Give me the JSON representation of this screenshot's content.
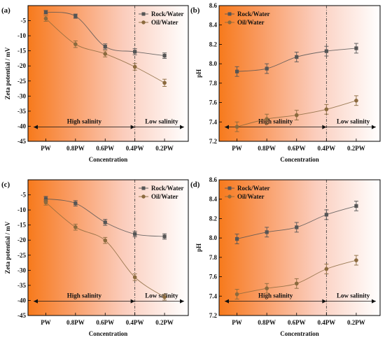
{
  "chart_data": [
    {
      "type": "line",
      "panel_label": "(a)",
      "xlabel": "Concentration",
      "ylabel": "Zeta potential / mV",
      "categories": [
        "PW",
        "0.8PW",
        "0.6PW",
        "0.4PW",
        "0.2PW"
      ],
      "ylim": [
        -45,
        0
      ],
      "yticks": [
        -45,
        -40,
        -35,
        -30,
        -25,
        -20,
        -15,
        -10,
        -5
      ],
      "ytick_labels": [
        "-45",
        "-40",
        "-35",
        "-30",
        "-25",
        "-20",
        "-15",
        "-10",
        "-5"
      ],
      "divider_at": "0.4PW",
      "annotations": {
        "left": "High salinity",
        "right": "Low salinity"
      },
      "legend_position": "top-right",
      "series": [
        {
          "name": "Rock/Water",
          "marker": "square",
          "color": "#555555",
          "values": [
            -2.2,
            -3.5,
            -13.6,
            -15.3,
            -16.6
          ],
          "errors": [
            0.6,
            0.7,
            0.9,
            1.0,
            0.9
          ]
        },
        {
          "name": "Oil/Water",
          "marker": "circle",
          "color": "#8b6a3e",
          "values": [
            -4.3,
            -12.8,
            -16.0,
            -20.3,
            -25.6
          ],
          "errors": [
            0.9,
            1.1,
            1.0,
            1.1,
            1.2
          ]
        }
      ]
    },
    {
      "type": "line",
      "panel_label": "(b)",
      "xlabel": "Concentration",
      "ylabel": "pH",
      "categories": [
        "PW",
        "0.8PW",
        "0.6PW",
        "0.4PW",
        "0.2PW"
      ],
      "ylim": [
        7.2,
        8.6
      ],
      "yticks": [
        7.2,
        7.4,
        7.6,
        7.8,
        8.0,
        8.2,
        8.4,
        8.6
      ],
      "ytick_labels": [
        "7.2",
        "7.4",
        "7.6",
        "7.8",
        "8.0",
        "8.2",
        "8.4",
        "8.6"
      ],
      "divider_at": "0.4PW",
      "annotations": {
        "left": "High salinity",
        "right": "Low salinity"
      },
      "legend_position": "top-left",
      "series": [
        {
          "name": "Rock/Water",
          "marker": "square",
          "color": "#555555",
          "values": [
            7.92,
            7.95,
            8.07,
            8.13,
            8.16
          ],
          "errors": [
            0.05,
            0.05,
            0.05,
            0.05,
            0.05
          ]
        },
        {
          "name": "Oil/Water",
          "marker": "circle",
          "color": "#8b6a3e",
          "values": [
            7.35,
            7.43,
            7.47,
            7.53,
            7.62
          ],
          "errors": [
            0.05,
            0.05,
            0.05,
            0.05,
            0.05
          ]
        }
      ]
    },
    {
      "type": "line",
      "panel_label": "(c)",
      "xlabel": "Concentration",
      "ylabel": "Zeta potential / mV",
      "categories": [
        "PW",
        "0.8PW",
        "0.6PW",
        "0.4PW",
        "0.2PW"
      ],
      "ylim": [
        -45,
        0
      ],
      "yticks": [
        -45,
        -40,
        -35,
        -30,
        -25,
        -20,
        -15,
        -10,
        -5
      ],
      "ytick_labels": [
        "-45",
        "-40",
        "-35",
        "-30",
        "-25",
        "-20",
        "-15",
        "-10",
        "-5"
      ],
      "divider_at": "0.4PW",
      "annotations": {
        "left": "High salinity",
        "right": "Low salinity"
      },
      "legend_position": "top-right",
      "series": [
        {
          "name": "Rock/Water",
          "marker": "square",
          "color": "#555555",
          "values": [
            -6.3,
            -7.8,
            -14.1,
            -18.0,
            -18.8
          ],
          "errors": [
            0.8,
            0.9,
            1.0,
            0.9,
            0.9
          ]
        },
        {
          "name": "Oil/Water",
          "marker": "circle",
          "color": "#8b6a3e",
          "values": [
            -7.5,
            -15.7,
            -20.1,
            -32.3,
            -38.9
          ],
          "errors": [
            0.9,
            1.0,
            1.0,
            1.1,
            1.0
          ]
        }
      ]
    },
    {
      "type": "line",
      "panel_label": "(d)",
      "xlabel": "Concentration",
      "ylabel": "pH",
      "categories": [
        "PW",
        "0.8PW",
        "0.6PW",
        "0.4PW",
        "0.2PW"
      ],
      "ylim": [
        7.2,
        8.6
      ],
      "yticks": [
        7.2,
        7.4,
        7.6,
        7.8,
        8.0,
        8.2,
        8.4,
        8.6
      ],
      "ytick_labels": [
        "7.2",
        "7.4",
        "7.6",
        "7.8",
        "8.0",
        "8.2",
        "8.4",
        "8.6"
      ],
      "divider_at": "0.4PW",
      "annotations": {
        "left": "High salinity",
        "right": "Low salinity"
      },
      "legend_position": "top-left",
      "series": [
        {
          "name": "Rock/Water",
          "marker": "square",
          "color": "#555555",
          "values": [
            7.99,
            8.06,
            8.11,
            8.24,
            8.33
          ],
          "errors": [
            0.05,
            0.05,
            0.05,
            0.05,
            0.05
          ]
        },
        {
          "name": "Oil/Water",
          "marker": "circle",
          "color": "#8b6a3e",
          "values": [
            7.42,
            7.48,
            7.53,
            7.68,
            7.77
          ],
          "errors": [
            0.05,
            0.05,
            0.05,
            0.05,
            0.05
          ]
        }
      ]
    }
  ],
  "colors": {
    "background_hot": "#f77a1c",
    "background_light": "#fde4dc",
    "background_end": "#ffffff",
    "axis": "#000000"
  }
}
